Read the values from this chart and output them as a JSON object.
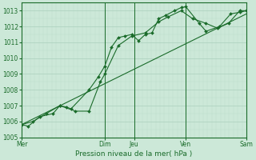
{
  "bg_color": "#cce8d8",
  "grid_major_color": "#aacfbc",
  "grid_minor_color": "#bbdcca",
  "line_color": "#1a6b2a",
  "marker_color": "#1a6b2a",
  "xlabel": "Pression niveau de la mer( hPa )",
  "ylim": [
    1005,
    1013.5
  ],
  "yticks": [
    1005,
    1006,
    1007,
    1008,
    1009,
    1010,
    1011,
    1012,
    1013
  ],
  "xtick_labels": [
    "Mer",
    "Dim",
    "Jeu",
    "Ven",
    "Sam"
  ],
  "xtick_positions": [
    0.0,
    0.37,
    0.5,
    0.73,
    1.0
  ],
  "vline_positions": [
    0.0,
    0.37,
    0.5,
    0.73,
    1.0
  ],
  "xlim": [
    0,
    1.0
  ],
  "series1_x": [
    0.0,
    0.03,
    0.08,
    0.14,
    0.17,
    0.2,
    0.22,
    0.3,
    0.34,
    0.37,
    0.4,
    0.43,
    0.46,
    0.49,
    0.52,
    0.55,
    0.58,
    0.61,
    0.64,
    0.68,
    0.71,
    0.73,
    0.79,
    0.82,
    0.88,
    0.93,
    0.97,
    1.0
  ],
  "series1_y": [
    1005.8,
    1005.7,
    1006.3,
    1006.5,
    1007.0,
    1006.9,
    1006.8,
    1008.0,
    1008.8,
    1009.5,
    1010.7,
    1011.3,
    1011.4,
    1011.5,
    1011.1,
    1011.5,
    1011.6,
    1012.5,
    1012.7,
    1013.0,
    1013.2,
    1013.25,
    1012.2,
    1011.7,
    1012.0,
    1012.8,
    1012.9,
    1013.0
  ],
  "series2_x": [
    0.0,
    0.05,
    0.11,
    0.17,
    0.24,
    0.3,
    0.35,
    0.37,
    0.43,
    0.49,
    0.55,
    0.61,
    0.65,
    0.71,
    0.76,
    0.82,
    0.87,
    0.92,
    0.97,
    1.0
  ],
  "series2_y": [
    1005.8,
    1006.0,
    1006.5,
    1007.0,
    1006.65,
    1006.65,
    1008.5,
    1009.0,
    1010.8,
    1011.4,
    1011.6,
    1012.3,
    1012.6,
    1013.0,
    1012.5,
    1012.2,
    1011.9,
    1012.2,
    1013.0,
    1013.0
  ],
  "trend_x": [
    0.0,
    1.0
  ],
  "trend_y": [
    1005.8,
    1012.8
  ]
}
